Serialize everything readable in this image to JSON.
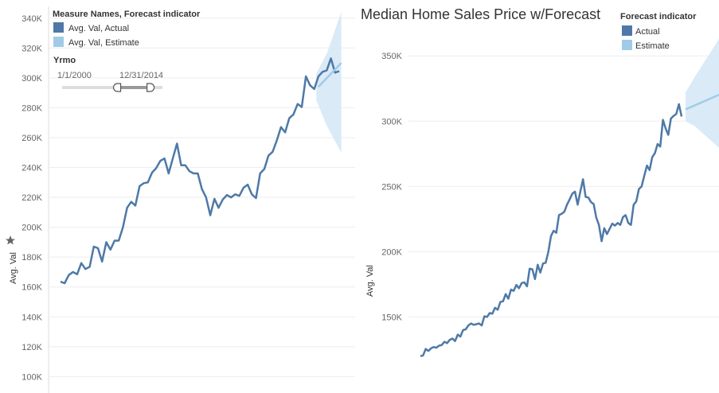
{
  "colors": {
    "actual": "#4e79a7",
    "estimate": "#a0cbe8",
    "band": "#d4e6f6",
    "grid": "#eeeeee"
  },
  "left_panel": {
    "legend_title": "Measure Names, Forecast indicator",
    "legend_items": [
      "Avg. Val, Actual",
      "Avg. Val, Estimate"
    ],
    "filter": {
      "title": "Yrmo",
      "start_label": "1/1/2000",
      "end_label": "12/31/2014",
      "start_value": 0.56,
      "end_value": 0.87
    },
    "y_pin_icon": "pin-icon"
  },
  "right_panel": {
    "legend_title": "Forecast indicator",
    "legend_items": [
      "Actual",
      "Estimate"
    ]
  },
  "chart_data": [
    {
      "type": "line",
      "title": "",
      "xlabel": "",
      "ylabel": "Avg. Val",
      "ylim": [
        97000,
        342000
      ],
      "yticks": [
        "100K",
        "120K",
        "140K",
        "160K",
        "180K",
        "200K",
        "220K",
        "240K",
        "260K",
        "280K",
        "300K",
        "320K",
        "340K"
      ],
      "ytick_values": [
        100000,
        120000,
        140000,
        160000,
        180000,
        200000,
        220000,
        240000,
        260000,
        280000,
        300000,
        320000,
        340000
      ],
      "series": [
        {
          "name": "Avg. Val, Actual",
          "values": [
            163500,
            162500,
            168000,
            170000,
            168500,
            176000,
            172000,
            173500,
            187000,
            186000,
            177000,
            190000,
            185000,
            191000,
            191000,
            200000,
            213000,
            217000,
            214500,
            227500,
            229500,
            230000,
            236500,
            239500,
            244500,
            246000,
            236000,
            246000,
            256000,
            241500,
            241500,
            237500,
            236000,
            236000,
            225500,
            220000,
            208000,
            219000,
            213000,
            218500,
            221500,
            220000,
            222000,
            221000,
            226500,
            228500,
            222000,
            219500,
            236000,
            239000,
            248000,
            250500,
            258000,
            267000,
            263500,
            273000,
            275500,
            282500,
            280500,
            301000,
            295000,
            292500,
            301000,
            304000,
            305000,
            313000,
            303500,
            304500
          ]
        },
        {
          "name": "Avg. Val, Estimate",
          "x_start": 62,
          "x_end": 67.5,
          "values": [
            294000,
            310000
          ]
        }
      ],
      "forecast_band": {
        "x": [
          61.5,
          64,
          67.5
        ],
        "upper": [
          303000,
          316000,
          344000
        ],
        "lower": [
          285000,
          268000,
          250000
        ]
      }
    },
    {
      "type": "line",
      "title": "Median Home Sales Price w/Forecast",
      "xlabel": "",
      "ylabel": "Avg. Val",
      "ylim": [
        107000,
        380000
      ],
      "yticks": [
        "150K",
        "200K",
        "250K",
        "300K",
        "350K"
      ],
      "ytick_values": [
        150000,
        200000,
        250000,
        300000,
        350000
      ],
      "series": [
        {
          "name": "Actual",
          "values": [
            120000,
            120500,
            125500,
            124000,
            126000,
            127000,
            126500,
            128000,
            128500,
            131000,
            130000,
            132500,
            133500,
            131500,
            136500,
            135000,
            140000,
            140500,
            143500,
            145000,
            144000,
            144500,
            145000,
            143500,
            150500,
            150000,
            153000,
            152500,
            157000,
            155500,
            161500,
            162000,
            167500,
            164000,
            171000,
            170000,
            174500,
            172000,
            176000,
            176500,
            173500,
            187000,
            186500,
            179000,
            190000,
            184000,
            191000,
            191500,
            200000,
            212000,
            216000,
            214500,
            228000,
            229000,
            230500,
            236000,
            240000,
            244500,
            246000,
            236000,
            246000,
            255500,
            242000,
            241500,
            238000,
            236500,
            226000,
            220500,
            208000,
            218000,
            213500,
            217500,
            221500,
            220000,
            222000,
            220500,
            226500,
            228000,
            222000,
            220500,
            236000,
            238500,
            248000,
            250000,
            258000,
            266000,
            262500,
            272500,
            275500,
            282500,
            280500,
            301000,
            294500,
            289500,
            302000,
            304000,
            305500,
            313000,
            303500
          ]
        },
        {
          "name": "Estimate",
          "x_start": 99.5,
          "x_end": 113,
          "values": [
            309000,
            321000
          ]
        }
      ],
      "forecast_band": {
        "x": [
          99.5,
          103,
          113
        ],
        "upper": [
          322000,
          334000,
          366000
        ],
        "lower": [
          300000,
          296000,
          278000
        ]
      }
    }
  ]
}
